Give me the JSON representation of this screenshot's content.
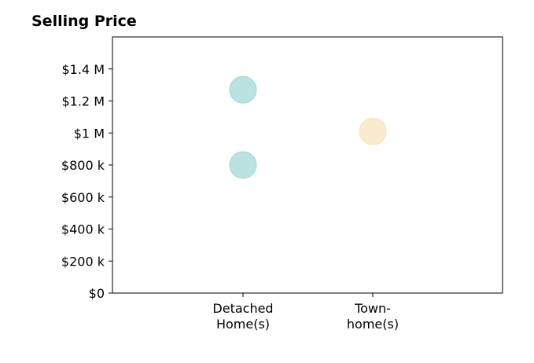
{
  "chart_data": {
    "type": "scatter",
    "title": "Selling Price",
    "xlabel": "",
    "ylabel": "",
    "categories": [
      [
        "Detached",
        "Home(s)"
      ],
      [
        "Town-",
        "home(s)"
      ]
    ],
    "ylim": [
      0,
      1600000
    ],
    "yticks": [
      {
        "value": 0,
        "label": "$0"
      },
      {
        "value": 200000,
        "label": "$200 k"
      },
      {
        "value": 400000,
        "label": "$400 k"
      },
      {
        "value": 600000,
        "label": "$600 k"
      },
      {
        "value": 800000,
        "label": "$800 k"
      },
      {
        "value": 1000000,
        "label": "$1 M"
      },
      {
        "value": 1200000,
        "label": "$1.2 M"
      },
      {
        "value": 1400000,
        "label": "$1.4 M"
      }
    ],
    "points": [
      {
        "category": 0,
        "y": 1270000,
        "color": "#9fd6d1"
      },
      {
        "category": 0,
        "y": 800000,
        "color": "#9fd6d1"
      },
      {
        "category": 1,
        "y": 1010000,
        "color": "#f6e3b8"
      }
    ],
    "grid": false,
    "legend": "none"
  }
}
